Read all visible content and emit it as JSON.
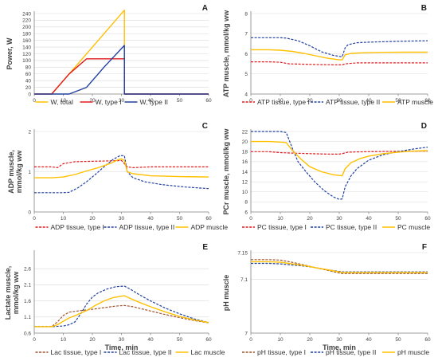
{
  "colors": {
    "red": "#e31a1c",
    "blue": "#2040a0",
    "yellow": "#ffc000",
    "brown": "#a0522d",
    "axis": "#7f7f7f",
    "grid": "#d9d9d9"
  },
  "chart_data": [
    {
      "letter": "A",
      "type": "line",
      "ylabel": "Power, W",
      "xlabel": "",
      "xlim": [
        0,
        60
      ],
      "ylim": [
        0,
        240
      ],
      "xticks": [
        0,
        10,
        20,
        30,
        40,
        50,
        60
      ],
      "yticks": [
        0,
        20,
        40,
        60,
        80,
        100,
        120,
        140,
        160,
        180,
        200,
        220,
        240
      ],
      "ytick_labels": [
        "0",
        "20",
        "40",
        "60",
        "80",
        "100",
        "120",
        "140",
        "160",
        "180",
        "200",
        "220",
        "240"
      ],
      "series": [
        {
          "name": "W, total",
          "color": "#ffc000",
          "dash": "solid",
          "x": [
            0,
            6,
            31,
            31,
            60
          ],
          "y": [
            0,
            0,
            250,
            0,
            0
          ]
        },
        {
          "name": "W, type I",
          "color": "#e31a1c",
          "dash": "solid",
          "x": [
            0,
            6,
            12,
            18,
            31,
            31,
            60
          ],
          "y": [
            0,
            0,
            60,
            105,
            105,
            0,
            0
          ]
        },
        {
          "name": "W, type II",
          "color": "#2040a0",
          "dash": "solid",
          "x": [
            0,
            12,
            18,
            24,
            31,
            31,
            60
          ],
          "y": [
            0,
            0,
            20,
            80,
            145,
            0,
            0
          ]
        }
      ]
    },
    {
      "letter": "B",
      "type": "line",
      "ylabel": "ATP muscle, mmol/kg ww",
      "xlabel": "",
      "xlim": [
        0,
        60
      ],
      "ylim": [
        4,
        8
      ],
      "xticks": [
        0,
        10,
        20,
        30,
        40,
        50,
        60
      ],
      "yticks": [
        4,
        5,
        6,
        7,
        8
      ],
      "ytick_labels": [
        "4",
        "5",
        "6",
        "7",
        "8"
      ],
      "series": [
        {
          "name": "ATP tissue, type I",
          "color": "#e31a1c",
          "dash": "dashed",
          "x": [
            0,
            6,
            10,
            13,
            18,
            24,
            30,
            31,
            32,
            36,
            40,
            50,
            60
          ],
          "y": [
            5.6,
            5.6,
            5.58,
            5.5,
            5.48,
            5.46,
            5.45,
            5.45,
            5.5,
            5.55,
            5.55,
            5.55,
            5.55
          ]
        },
        {
          "name": "ATP tissue, type II",
          "color": "#2040a0",
          "dash": "dashed",
          "x": [
            0,
            6,
            10,
            12,
            16,
            20,
            24,
            28,
            31,
            32,
            33,
            36,
            40,
            50,
            60
          ],
          "y": [
            6.8,
            6.8,
            6.8,
            6.78,
            6.65,
            6.4,
            6.1,
            5.92,
            5.85,
            6.3,
            6.45,
            6.55,
            6.58,
            6.62,
            6.65
          ]
        },
        {
          "name": "ATP muscle",
          "color": "#ffc000",
          "dash": "solid",
          "x": [
            0,
            6,
            10,
            14,
            18,
            22,
            26,
            30,
            31,
            32,
            34,
            38,
            44,
            52,
            60
          ],
          "y": [
            6.2,
            6.2,
            6.18,
            6.12,
            6.02,
            5.9,
            5.78,
            5.7,
            5.7,
            5.95,
            6.02,
            6.05,
            6.07,
            6.08,
            6.08
          ]
        }
      ]
    },
    {
      "letter": "C",
      "type": "line",
      "ylabel": "ADP muscle, mmol/kg ww",
      "xlabel": "",
      "xlim": [
        0,
        60
      ],
      "ylim": [
        0,
        2
      ],
      "xticks": [
        0,
        10,
        20,
        30,
        40,
        50,
        60
      ],
      "yticks": [
        0,
        1,
        2
      ],
      "ytick_labels": [
        "0",
        "1",
        "2"
      ],
      "series": [
        {
          "name": "ADP tissue, type I",
          "color": "#e31a1c",
          "dash": "dashed",
          "x": [
            0,
            6,
            8,
            10,
            14,
            20,
            26,
            30,
            31,
            32,
            34,
            40,
            50,
            60
          ],
          "y": [
            1.12,
            1.12,
            1.1,
            1.2,
            1.25,
            1.26,
            1.27,
            1.28,
            1.2,
            1.12,
            1.1,
            1.12,
            1.12,
            1.12
          ]
        },
        {
          "name": "ADP tissue, type II",
          "color": "#2040a0",
          "dash": "dashed",
          "x": [
            0,
            6,
            10,
            12,
            15,
            18,
            21,
            24,
            27,
            29.5,
            31,
            32,
            34,
            38,
            44,
            52,
            60
          ],
          "y": [
            0.48,
            0.48,
            0.48,
            0.49,
            0.6,
            0.75,
            0.93,
            1.12,
            1.3,
            1.4,
            1.4,
            1.0,
            0.85,
            0.75,
            0.68,
            0.62,
            0.58
          ]
        },
        {
          "name": "ADP muscle",
          "color": "#ffc000",
          "dash": "solid",
          "x": [
            0,
            6,
            10,
            14,
            18,
            22,
            26,
            29,
            30,
            31,
            32,
            34,
            40,
            50,
            60
          ],
          "y": [
            0.85,
            0.85,
            0.87,
            0.93,
            1.02,
            1.1,
            1.2,
            1.3,
            1.32,
            1.28,
            1.0,
            0.95,
            0.9,
            0.88,
            0.87
          ]
        }
      ]
    },
    {
      "letter": "D",
      "type": "line",
      "ylabel": "PCr muscle, mmol/kg ww",
      "xlabel": "",
      "xlim": [
        0,
        60
      ],
      "ylim": [
        6,
        22
      ],
      "xticks": [
        0,
        10,
        20,
        30,
        40,
        50,
        60
      ],
      "yticks": [
        6,
        8,
        10,
        12,
        14,
        16,
        18,
        20,
        22
      ],
      "ytick_labels": [
        "6",
        "8",
        "10",
        "12",
        "14",
        "16",
        "18",
        "20",
        "22"
      ],
      "series": [
        {
          "name": "PC tissue, type I",
          "color": "#e31a1c",
          "dash": "dashed",
          "x": [
            0,
            6,
            10,
            14,
            20,
            26,
            30,
            31,
            33,
            40,
            50,
            60
          ],
          "y": [
            18,
            18,
            17.8,
            17.7,
            17.6,
            17.5,
            17.5,
            17.6,
            17.9,
            18.0,
            18.05,
            18.1
          ]
        },
        {
          "name": "PC tissue, type II",
          "color": "#2040a0",
          "dash": "dashed",
          "x": [
            0,
            6,
            10,
            12,
            14,
            16,
            19,
            22,
            25,
            28,
            30,
            31,
            32,
            34,
            36,
            40,
            45,
            50,
            55,
            60
          ],
          "y": [
            22,
            22,
            22,
            21.8,
            18.8,
            16.0,
            13.8,
            11.8,
            10.2,
            9.0,
            8.5,
            8.6,
            11.0,
            13.2,
            14.6,
            16.3,
            17.4,
            18.0,
            18.5,
            18.9
          ]
        },
        {
          "name": "PC muscle",
          "color": "#ffc000",
          "dash": "solid",
          "x": [
            0,
            6,
            10,
            12,
            14,
            17,
            20,
            24,
            28,
            31,
            32,
            34,
            37,
            40,
            45,
            50,
            55,
            60
          ],
          "y": [
            20,
            20,
            19.9,
            19.8,
            18.3,
            16.5,
            15.0,
            14.0,
            13.4,
            13.2,
            14.6,
            15.8,
            16.6,
            17.1,
            17.6,
            17.9,
            18.1,
            18.2
          ]
        }
      ]
    },
    {
      "letter": "E",
      "type": "line",
      "ylabel": "Lactate muscle, mmol/kg ww",
      "xlabel": "Time, min",
      "xlim": [
        0,
        60
      ],
      "ylim": [
        0.6,
        3.1
      ],
      "xticks": [
        0,
        10,
        20,
        30,
        40,
        50,
        60
      ],
      "yticks": [
        0.6,
        1.1,
        1.6,
        2.1,
        2.6
      ],
      "ytick_labels": [
        "0.6",
        "1.1",
        "1.6",
        "2.1",
        "2.6"
      ],
      "series": [
        {
          "name": "Lac tissue, type I",
          "color": "#a0522d",
          "dash": "dashed",
          "x": [
            0,
            6,
            8,
            10,
            12,
            16,
            20,
            24,
            28,
            31,
            34,
            38,
            44,
            50,
            55,
            60
          ],
          "y": [
            0.8,
            0.8,
            0.95,
            1.15,
            1.25,
            1.3,
            1.34,
            1.39,
            1.44,
            1.46,
            1.42,
            1.33,
            1.2,
            1.08,
            0.99,
            0.92
          ]
        },
        {
          "name": "Lac tissue, type II",
          "color": "#2040a0",
          "dash": "dashed",
          "x": [
            0,
            6,
            10,
            12,
            14,
            16,
            18,
            20,
            22,
            25,
            28,
            31,
            33,
            36,
            40,
            45,
            50,
            55,
            60
          ],
          "y": [
            0.8,
            0.8,
            0.82,
            0.86,
            0.95,
            1.2,
            1.5,
            1.72,
            1.85,
            1.97,
            2.04,
            2.06,
            1.97,
            1.8,
            1.6,
            1.38,
            1.2,
            1.04,
            0.93
          ]
        },
        {
          "name": "Lac muscle",
          "color": "#ffc000",
          "dash": "solid",
          "x": [
            0,
            6,
            8,
            10,
            12,
            15,
            18,
            21,
            24,
            27,
            31,
            33,
            36,
            40,
            45,
            50,
            55,
            60
          ],
          "y": [
            0.8,
            0.8,
            0.86,
            0.97,
            1.07,
            1.18,
            1.3,
            1.46,
            1.6,
            1.7,
            1.76,
            1.68,
            1.56,
            1.42,
            1.26,
            1.12,
            1.01,
            0.93
          ]
        }
      ]
    },
    {
      "letter": "F",
      "type": "line",
      "ylabel": "pH muscle",
      "xlabel": "Time, min",
      "xlim": [
        0,
        60
      ],
      "ylim": [
        7,
        7.15
      ],
      "xticks": [
        0,
        10,
        20,
        30,
        40,
        50,
        60
      ],
      "yticks": [
        7,
        7.1,
        7.15
      ],
      "ytick_labels": [
        "7",
        "7.1",
        "7.15"
      ],
      "series": [
        {
          "name": "pH tissue, type I",
          "color": "#a0522d",
          "dash": "dashed",
          "x": [
            0,
            6,
            10,
            14,
            18,
            22,
            26,
            30,
            31,
            40,
            50,
            60
          ],
          "y": [
            7.137,
            7.137,
            7.136,
            7.132,
            7.127,
            7.122,
            7.117,
            7.112,
            7.111,
            7.111,
            7.111,
            7.111
          ]
        },
        {
          "name": "pH tissue, type II",
          "color": "#2040a0",
          "dash": "dashed",
          "x": [
            0,
            6,
            10,
            14,
            18,
            22,
            26,
            30,
            31,
            40,
            50,
            60
          ],
          "y": [
            7.13,
            7.13,
            7.129,
            7.127,
            7.125,
            7.122,
            7.118,
            7.115,
            7.114,
            7.114,
            7.114,
            7.114
          ]
        },
        {
          "name": "pH muscle",
          "color": "#ffc000",
          "dash": "solid",
          "x": [
            0,
            6,
            10,
            14,
            18,
            22,
            26,
            30,
            31,
            40,
            50,
            60
          ],
          "y": [
            7.133,
            7.133,
            7.132,
            7.129,
            7.126,
            7.122,
            7.118,
            7.114,
            7.113,
            7.113,
            7.113,
            7.113
          ]
        }
      ]
    }
  ]
}
